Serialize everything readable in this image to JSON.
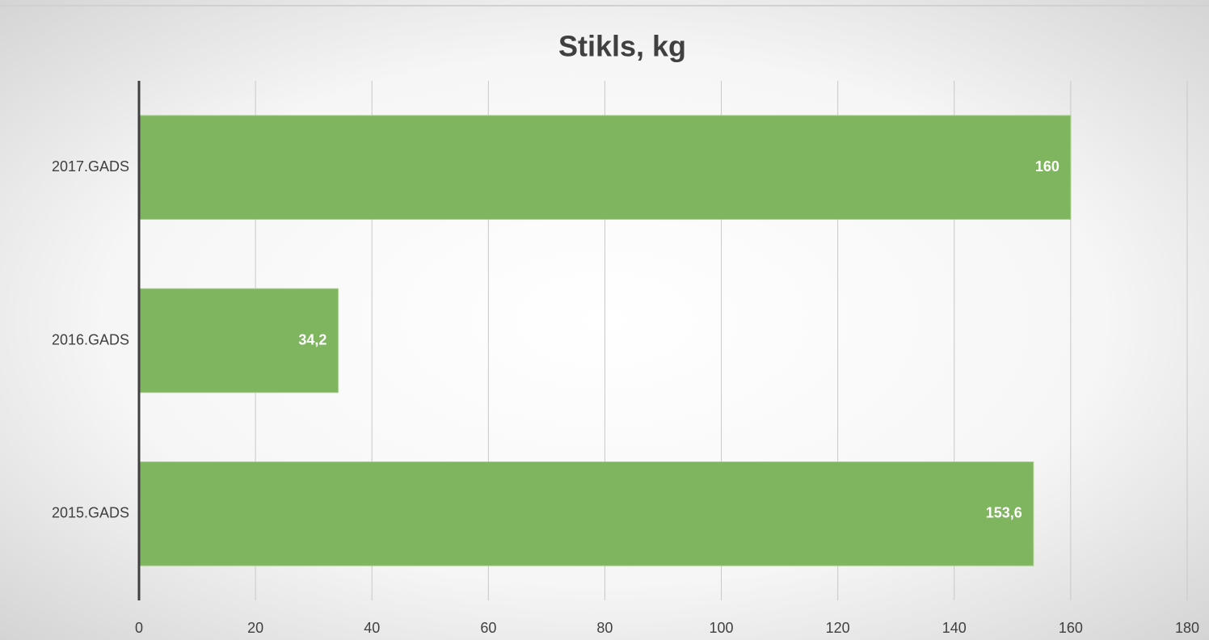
{
  "chart_data": {
    "type": "bar",
    "orientation": "horizontal",
    "title": "Stikls, kg",
    "categories": [
      "2017.GADS",
      "2016.GADS",
      "2015.GADS"
    ],
    "values": [
      160,
      34.2,
      153.6
    ],
    "value_labels": [
      "160",
      "34,2",
      "153,6"
    ],
    "color": "#7fb55e",
    "xlim": [
      0,
      180
    ],
    "xticks": [
      0,
      20,
      40,
      60,
      80,
      100,
      120,
      140,
      160,
      180
    ],
    "grid": true
  }
}
